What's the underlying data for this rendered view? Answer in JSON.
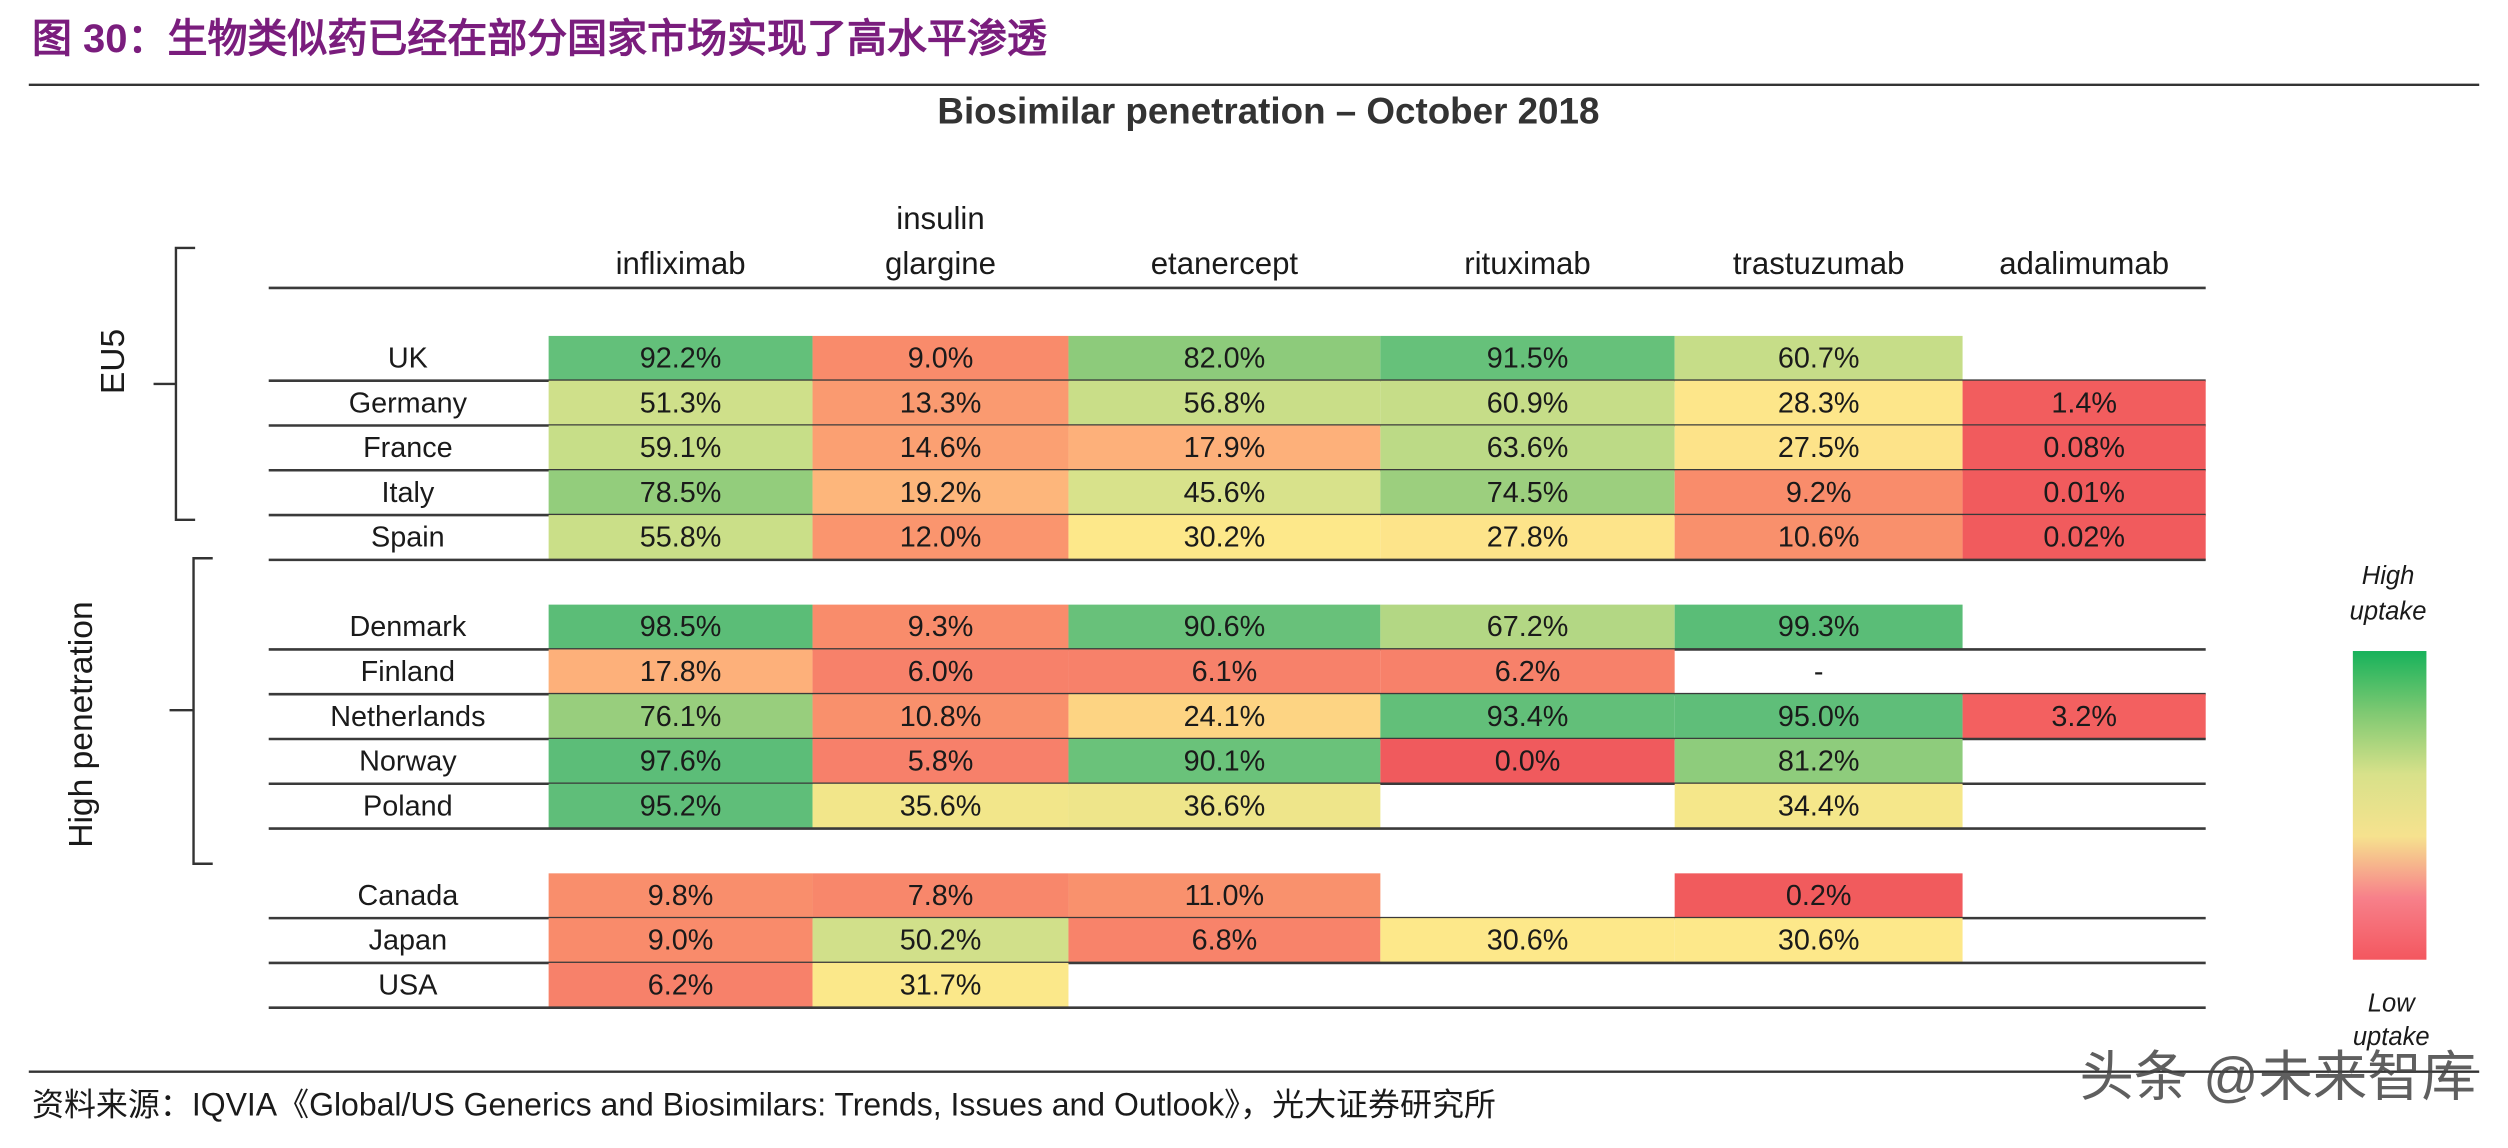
{
  "header": {
    "title": "图 30：生物类似药已经在部分国家市场实现了高水平渗透"
  },
  "table": {
    "title": "Biosimilar penetration – October 2018",
    "columns": [
      [
        "infliximab"
      ],
      [
        "insulin",
        "glargine"
      ],
      [
        "etanercept"
      ],
      [
        "rituximab"
      ],
      [
        "trastuzumab"
      ],
      [
        "adalimumab"
      ]
    ],
    "groups": [
      {
        "label": "EU5",
        "rows": [
          {
            "label": "UK",
            "cells": [
              "92.2%",
              "9.0%",
              "82.0%",
              "91.5%",
              "60.7%",
              null
            ],
            "colors": [
              "#63c07a",
              "#f98b6b",
              "#8dcb7b",
              "#66c17a",
              "#c6dd88",
              null
            ]
          },
          {
            "label": "Germany",
            "cells": [
              "51.3%",
              "13.3%",
              "56.8%",
              "60.9%",
              "28.3%",
              "1.4%"
            ],
            "colors": [
              "#cfe08a",
              "#fa9a70",
              "#c9de88",
              "#c6dd88",
              "#fde68a",
              "#f25d5e"
            ]
          },
          {
            "label": "France",
            "cells": [
              "59.1%",
              "14.6%",
              "17.9%",
              "63.6%",
              "27.5%",
              "0.08%"
            ],
            "colors": [
              "#c7de88",
              "#fba072",
              "#fdb07a",
              "#bcda86",
              "#fde389",
              "#f15b5d"
            ]
          },
          {
            "label": "Italy",
            "cells": [
              "78.5%",
              "19.2%",
              "45.6%",
              "74.5%",
              "9.2%",
              "0.01%"
            ],
            "colors": [
              "#93cd7c",
              "#fdb67b",
              "#d8e28b",
              "#9ccf7e",
              "#f98c6b",
              "#f15b5d"
            ]
          },
          {
            "label": "Spain",
            "cells": [
              "55.8%",
              "12.0%",
              "30.2%",
              "27.8%",
              "10.6%",
              "0.02%"
            ],
            "colors": [
              "#cadf88",
              "#fa956e",
              "#fde88a",
              "#fde48a",
              "#f9906c",
              "#f15b5d"
            ]
          }
        ]
      },
      {
        "label": "High penetration",
        "rows": [
          {
            "label": "Denmark",
            "cells": [
              "98.5%",
              "9.3%",
              "90.6%",
              "67.2%",
              "99.3%",
              null
            ],
            "colors": [
              "#5bbd77",
              "#f98c6b",
              "#68c17a",
              "#b3d784",
              "#5abd77",
              null
            ]
          },
          {
            "label": "Finland",
            "cells": [
              "17.8%",
              "6.0%",
              "6.1%",
              "6.2%",
              "-",
              null
            ],
            "colors": [
              "#fdb07a",
              "#f7816a",
              "#f7816a",
              "#f7816a",
              null,
              null
            ]
          },
          {
            "label": "Netherlands",
            "cells": [
              "76.1%",
              "10.8%",
              "24.1%",
              "93.4%",
              "95.0%",
              "3.2%"
            ],
            "colors": [
              "#98ce7d",
              "#f9906c",
              "#fdd483",
              "#62bf79",
              "#5fbe79",
              "#f36060"
            ]
          },
          {
            "label": "Norway",
            "cells": [
              "97.6%",
              "5.8%",
              "90.1%",
              "0.0%",
              "81.2%",
              null
            ],
            "colors": [
              "#5cbd78",
              "#f7806a",
              "#6ac27a",
              "#f05a5d",
              "#8ecc7c",
              null
            ]
          },
          {
            "label": "Poland",
            "cells": [
              "95.2%",
              "35.6%",
              "36.6%",
              null,
              "34.4%",
              null
            ],
            "colors": [
              "#5fbe79",
              "#f2e68a",
              "#eee58a",
              null,
              "#f5e78a",
              null
            ]
          }
        ]
      },
      {
        "rows": [
          {
            "label": "Canada",
            "cells": [
              "9.8%",
              "7.8%",
              "11.0%",
              null,
              "0.2%",
              null
            ],
            "colors": [
              "#f98e6c",
              "#f8876b",
              "#f9916d",
              null,
              "#f15b5d",
              null
            ]
          },
          {
            "label": "Japan",
            "cells": [
              "9.0%",
              "50.2%",
              "6.8%",
              "30.6%",
              "30.6%",
              null
            ],
            "colors": [
              "#f98b6b",
              "#d1e08a",
              "#f8836a",
              "#fde88a",
              "#fde88a",
              null
            ]
          },
          {
            "label": "USA",
            "cells": [
              "6.2%",
              "31.7%",
              null,
              null,
              null,
              null
            ],
            "colors": [
              "#f7816a",
              "#fbe88a",
              null,
              null,
              null,
              null
            ]
          }
        ]
      }
    ]
  },
  "legend": {
    "high": [
      "High",
      "uptake"
    ],
    "low": [
      "Low",
      "uptake"
    ],
    "colors": [
      "#17b25b",
      "#7fc972",
      "#d8e18a",
      "#f6e28e",
      "#f7808a",
      "#f4575f"
    ]
  },
  "source": "资料来源：IQVIA《Global/US Generics and Biosimilars: Trends, Issues and Outlook》，光大证券研究所",
  "watermark": "头条 @未来智库"
}
